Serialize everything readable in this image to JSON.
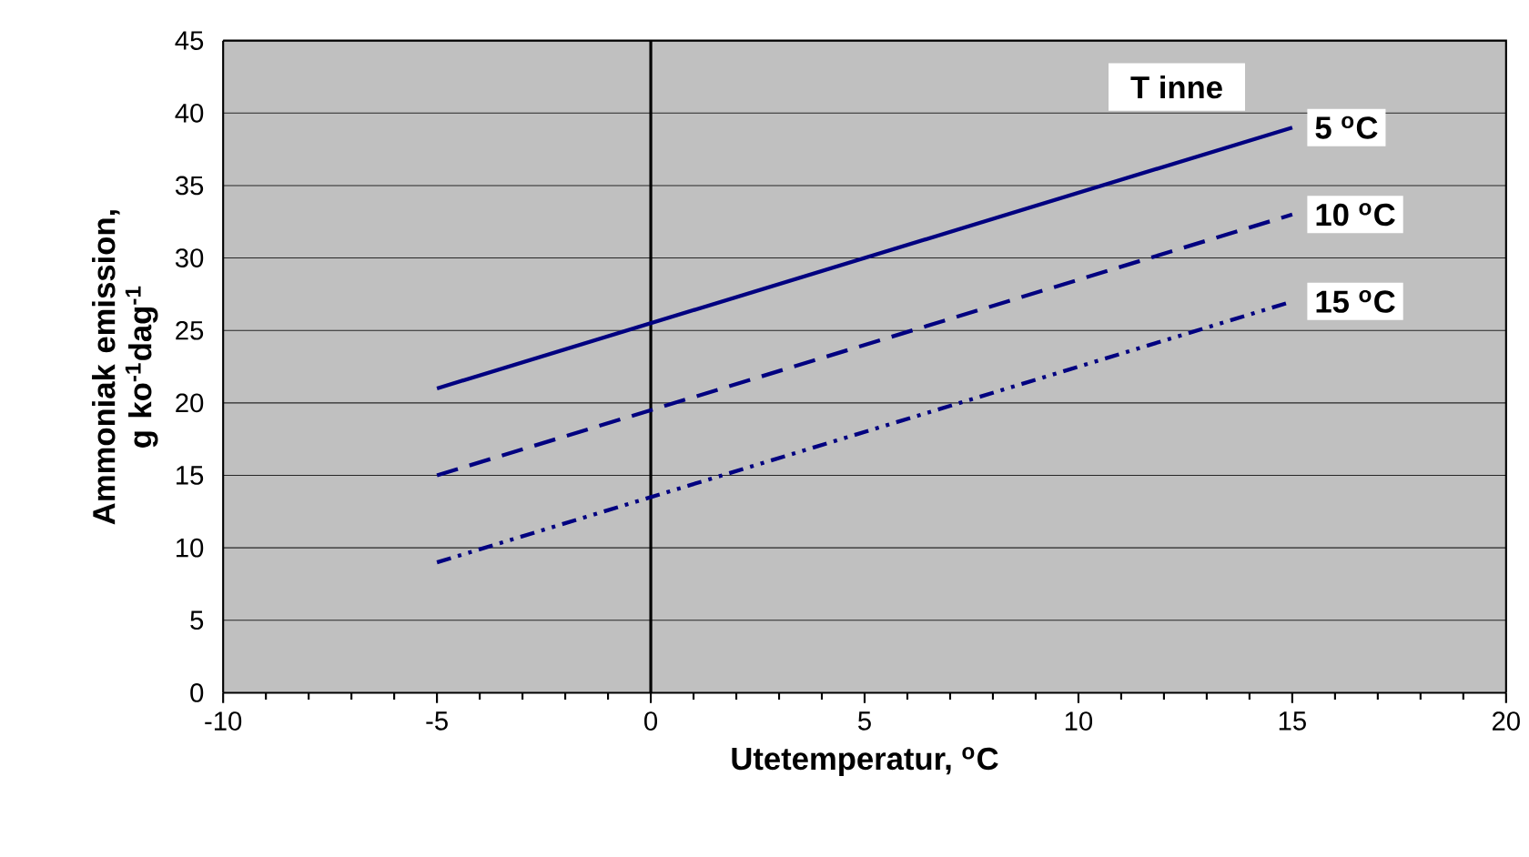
{
  "chart_data": {
    "type": "line",
    "xlabel": "Utetemperatur, $^{o}$C",
    "ylabel": "Ammoniak emission, g ko$^{-1}$dag$^{-1}$",
    "legend_title": "T inne",
    "x": [
      -5,
      15
    ],
    "series": [
      {
        "name": "5 $^{o}$C",
        "color": "#000080",
        "line_style": "solid",
        "values": [
          21,
          39
        ]
      },
      {
        "name": "10 $^{o}$C",
        "color": "#000080",
        "line_style": "dashed",
        "values": [
          15,
          33
        ]
      },
      {
        "name": "15 $^{o}$C",
        "color": "#000080",
        "line_style": "dashdot",
        "values": [
          9,
          27
        ]
      }
    ],
    "xlim": [
      -10,
      20
    ],
    "xticks": [
      -10,
      -5,
      0,
      5,
      10,
      15,
      20
    ],
    "ylim": [
      0,
      45
    ],
    "yticks": [
      0,
      5,
      10,
      15,
      20,
      25,
      30,
      35,
      40,
      45
    ],
    "grid": "y",
    "ref_lines": [
      {
        "axis": "x",
        "value": 0,
        "color": "#000000"
      }
    ]
  }
}
